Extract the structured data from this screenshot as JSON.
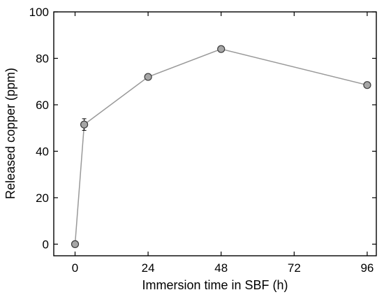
{
  "chart_data": {
    "type": "scatter",
    "title": "",
    "xlabel": "Immersion time in SBF (h)",
    "ylabel": "Released copper (ppm)",
    "xlim": [
      -7,
      99
    ],
    "ylim": [
      -5,
      100
    ],
    "xticks": [
      0,
      24,
      48,
      72,
      96
    ],
    "yticks": [
      0,
      20,
      40,
      60,
      80,
      100
    ],
    "grid": false,
    "legend": "none",
    "series": [
      {
        "x": [
          0,
          3,
          24,
          48,
          96
        ],
        "y": [
          0,
          51.5,
          72,
          84,
          68.5
        ],
        "yerr": [
          0,
          2.5,
          0,
          0,
          0
        ],
        "line_color": "#999999",
        "marker_fill": "#a6a6a6",
        "marker_edge": "#3a3a3a"
      }
    ]
  }
}
